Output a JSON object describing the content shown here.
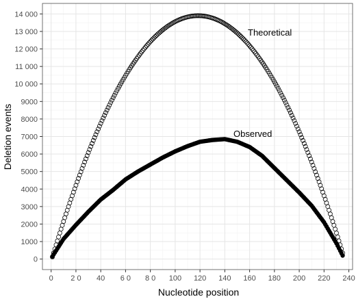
{
  "chart_data": {
    "type": "scatter",
    "xlabel": "Nucleotide position",
    "ylabel": "Deletion events",
    "xlim": [
      -7,
      243
    ],
    "ylim": [
      -600,
      14600
    ],
    "x_ticks": [
      0,
      20,
      40,
      60,
      80,
      100,
      120,
      140,
      160,
      180,
      200,
      220,
      240
    ],
    "x_tick_labels": [
      "0",
      "2 0",
      "40",
      "6 0",
      "8 0",
      "100",
      "120",
      "140",
      "160",
      "180",
      "200",
      "220",
      "240"
    ],
    "y_ticks": [
      0,
      1000,
      2000,
      3000,
      4000,
      5000,
      6000,
      7000,
      8000,
      9000,
      10000,
      11000,
      12000,
      13000,
      14000
    ],
    "y_tick_labels": [
      "0",
      "1000",
      "2000",
      "3000",
      "4000",
      "5000",
      "6000",
      "7000",
      "8000",
      "9000",
      "10 000",
      "11 000",
      "12 000",
      "13 000",
      "14 000"
    ],
    "grid": true,
    "series": [
      {
        "name": "Theoretical",
        "marker": "open-circle",
        "x_range": [
          1,
          235
        ],
        "formula": "y = 4 * peak * t * (1 - t), t = (x - 0.5) / 236",
        "peak": 13900
      },
      {
        "name": "Observed",
        "marker": "filled-circle",
        "x_range": [
          1,
          235
        ],
        "x": [
          1,
          10,
          20,
          30,
          40,
          50,
          60,
          70,
          80,
          90,
          100,
          110,
          120,
          130,
          140,
          150,
          160,
          170,
          180,
          190,
          200,
          210,
          220,
          230,
          235
        ],
        "y": [
          150,
          1150,
          1950,
          2700,
          3400,
          3950,
          4550,
          5000,
          5400,
          5800,
          6150,
          6450,
          6700,
          6800,
          6850,
          6700,
          6400,
          5900,
          5200,
          4500,
          3800,
          3050,
          2100,
          900,
          200
        ]
      }
    ],
    "colors": {
      "panel": "#ffffff",
      "grid_major": "#e5e5e5",
      "grid_minor": "#f2f2f2",
      "points": "#000000",
      "tick_text": "#4d4d4d"
    }
  }
}
